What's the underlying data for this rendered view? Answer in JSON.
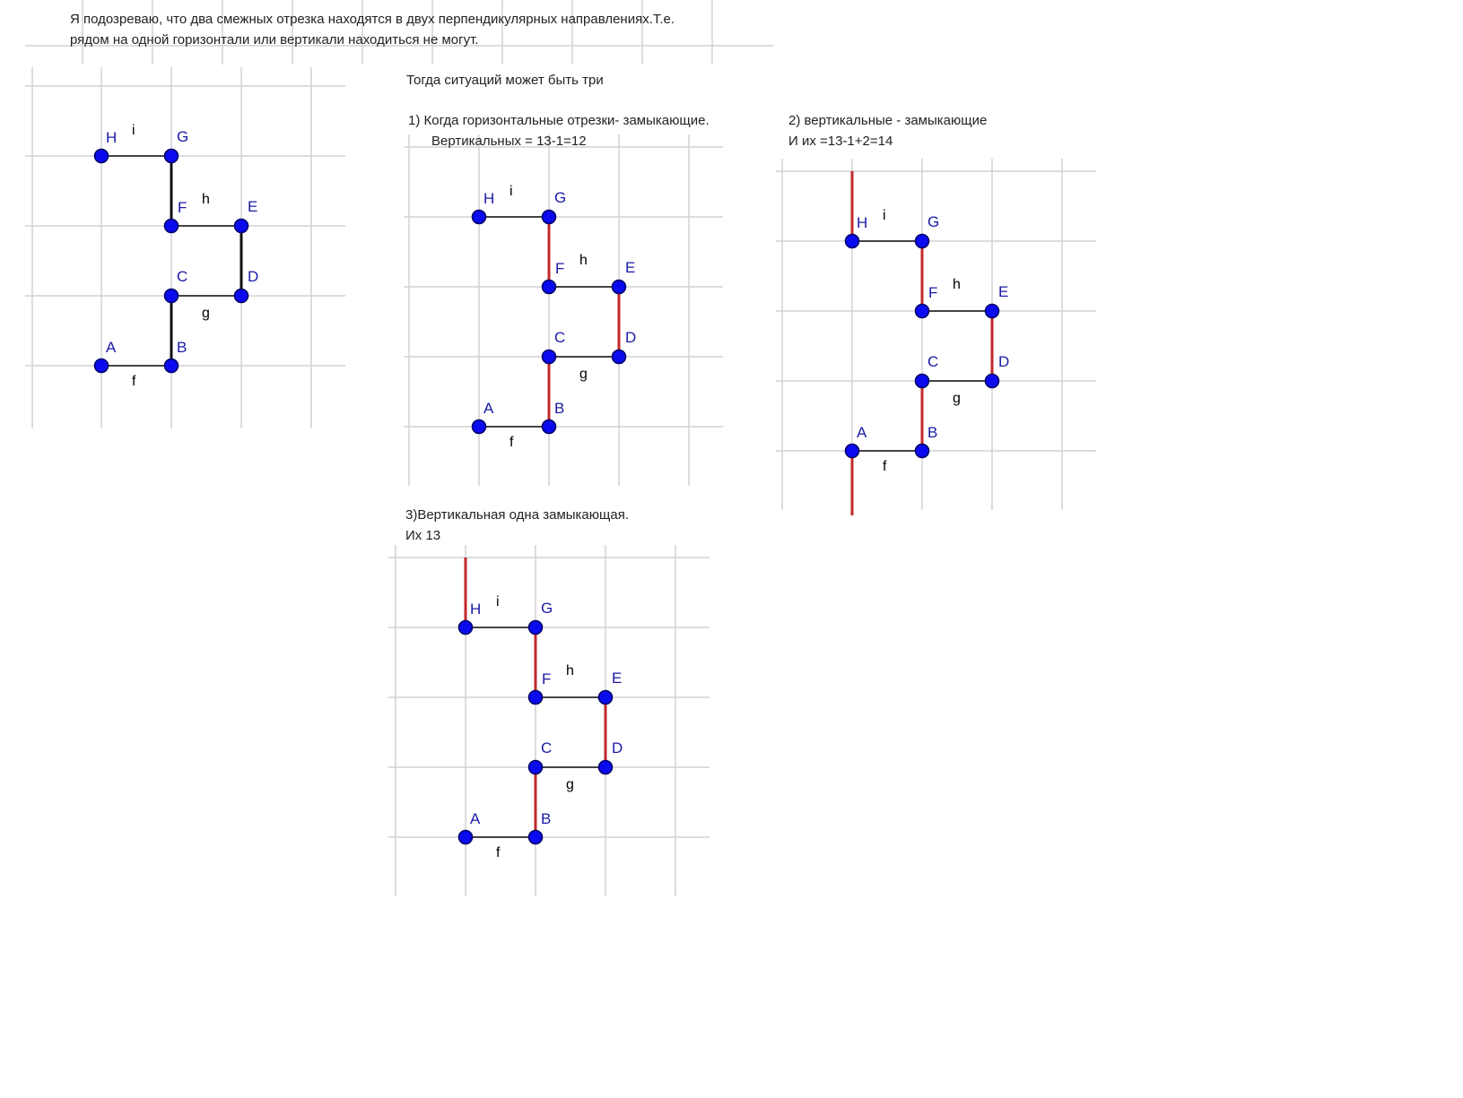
{
  "colors": {
    "grid": "#d2d2d2",
    "segment_black": "#111111",
    "segment_red": "#c0282c",
    "horizontal_gray": "#444444",
    "point_fill": "#0a0aee",
    "point_stroke": "#000066",
    "point_label": "#1a1aa6"
  },
  "text": {
    "intro_line1": "Я подозреваю, что два смежных отрезка находятся в двух перпендикулярных направлениях.Т.е.",
    "intro_line2": "рядом на одной горизонтали или вертикали находиться не могут.",
    "heading": "Тогда ситуаций может быть три",
    "case1_line1": "1)  Когда горизонтальные отрезки- замыкающие.",
    "case1_line2": "Вертикальных = 13-1=12",
    "case2_line1": "2) вертикальные - замыкающие",
    "case2_line2": "И их =13-1+2=14",
    "case3_line1": "3)Вертикальная одна замыкающая.",
    "case3_line2": "Их 13"
  },
  "point_labels": [
    "A",
    "B",
    "C",
    "D",
    "E",
    "F",
    "G",
    "H"
  ],
  "segment_labels": [
    "f",
    "g",
    "h",
    "i"
  ],
  "diagrams": [
    {
      "name": "original",
      "red_verticals": false,
      "extend_top_at_H": false,
      "extend_bottom_at_A": false
    },
    {
      "name": "case1",
      "red_verticals": true,
      "extend_top_at_H": false,
      "extend_bottom_at_A": false
    },
    {
      "name": "case2",
      "red_verticals": true,
      "extend_top_at_H": true,
      "extend_bottom_at_A": true
    },
    {
      "name": "case3",
      "red_verticals": true,
      "extend_top_at_H": true,
      "extend_bottom_at_A": false
    }
  ]
}
